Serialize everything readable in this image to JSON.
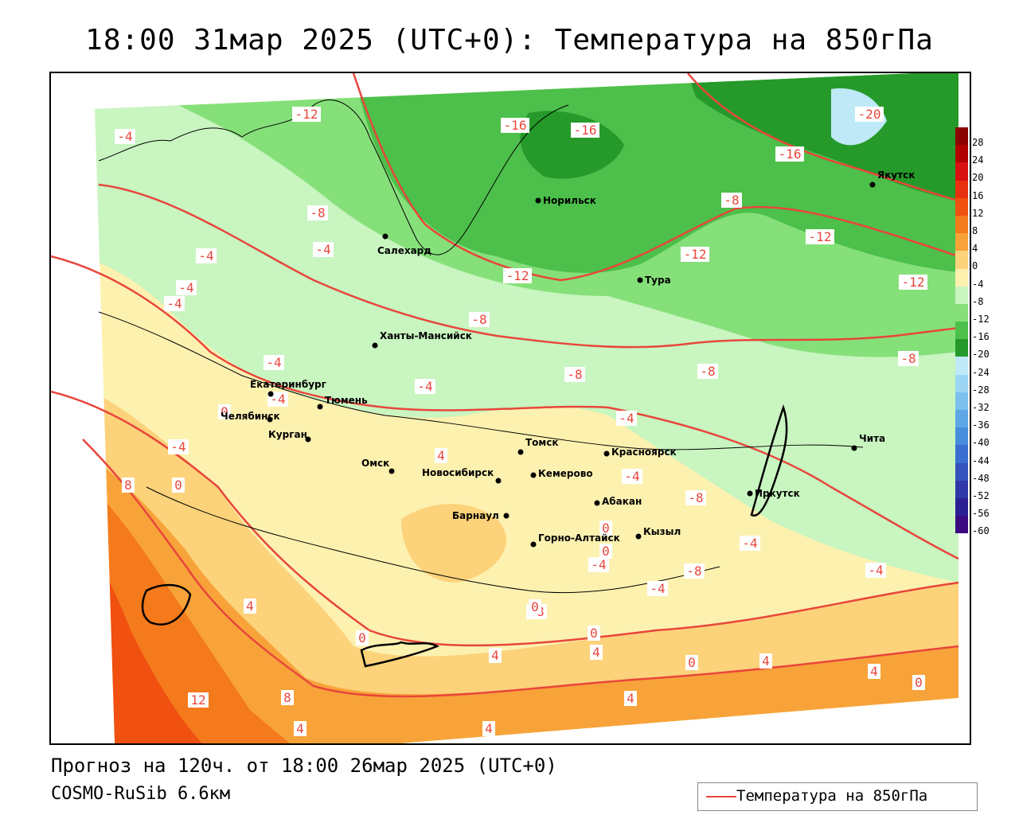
{
  "title": "18:00 31мар 2025 (UTC+0): Температура на 850гПа",
  "forecast_line": "Прогноз на 120ч. от 18:00 26мар 2025 (UTC+0)",
  "model_line": "COSMO-RuSib 6.6км",
  "legend": {
    "label": "Температура на 850гПа",
    "line_color": "#e8463c"
  },
  "colorbar": {
    "labels": [
      "28",
      "24",
      "20",
      "16",
      "12",
      "8",
      "4",
      "0",
      "-4",
      "-8",
      "-12",
      "-16",
      "-20",
      "-24",
      "-28",
      "-32",
      "-36",
      "-40",
      "-44",
      "-48",
      "-52",
      "-56",
      "-60"
    ],
    "colors": [
      "#8b0000",
      "#b00000",
      "#d81010",
      "#e83010",
      "#f05010",
      "#f47a1c",
      "#f8a33a",
      "#fcd27a",
      "#fdf1b0",
      "#c8f5c0",
      "#86e07a",
      "#4cc04a",
      "#259a2a",
      "#bfe9f7",
      "#9cd6f4",
      "#7cc0ee",
      "#5ea6e6",
      "#478ddc",
      "#3a6fd0",
      "#3552bd",
      "#3038a8",
      "#2a2094",
      "#3a0a80"
    ]
  },
  "isotherm_labels": [
    {
      "text": "-12"
    },
    {
      "text": "-16"
    },
    {
      "text": "-16"
    },
    {
      "text": "-20"
    },
    {
      "text": "-16"
    },
    {
      "text": "-4"
    },
    {
      "text": "-8"
    },
    {
      "text": "-8"
    },
    {
      "text": "-12"
    },
    {
      "text": "-4"
    },
    {
      "text": "-4"
    },
    {
      "text": "-4"
    },
    {
      "text": "-4"
    },
    {
      "text": "-12"
    },
    {
      "text": "-12"
    },
    {
      "text": "-12"
    },
    {
      "text": "-8"
    },
    {
      "text": "-4"
    },
    {
      "text": "-4"
    },
    {
      "text": "-4"
    },
    {
      "text": "-8"
    },
    {
      "text": "-8"
    },
    {
      "text": "-8"
    },
    {
      "text": "-4"
    },
    {
      "text": "0"
    },
    {
      "text": "-4"
    },
    {
      "text": "4"
    },
    {
      "text": "0"
    },
    {
      "text": "8"
    },
    {
      "text": "-4"
    },
    {
      "text": "0"
    },
    {
      "text": "-8"
    },
    {
      "text": "0"
    },
    {
      "text": "-4"
    },
    {
      "text": "-4"
    },
    {
      "text": "-8"
    },
    {
      "text": "-4"
    },
    {
      "text": "-4"
    },
    {
      "text": "-8"
    },
    {
      "text": "4"
    },
    {
      "text": "0"
    },
    {
      "text": "0"
    },
    {
      "text": "0"
    },
    {
      "text": "4"
    },
    {
      "text": "4"
    },
    {
      "text": "0"
    },
    {
      "text": "4"
    },
    {
      "text": "4"
    },
    {
      "text": "0"
    },
    {
      "text": "12"
    },
    {
      "text": "8"
    },
    {
      "text": "4"
    },
    {
      "text": "4"
    },
    {
      "text": "4"
    }
  ],
  "cities": [
    {
      "name": "Норильск"
    },
    {
      "name": "Якутск"
    },
    {
      "name": "Салехард"
    },
    {
      "name": "Тура"
    },
    {
      "name": "Ханты-Мансийск"
    },
    {
      "name": "Екатеринбург"
    },
    {
      "name": "Тюмень"
    },
    {
      "name": "Челябинск"
    },
    {
      "name": "Курган"
    },
    {
      "name": "Омск"
    },
    {
      "name": "Новосибирск"
    },
    {
      "name": "Томск"
    },
    {
      "name": "Кемерово"
    },
    {
      "name": "Красноярск"
    },
    {
      "name": "Абакан"
    },
    {
      "name": "Барнаул"
    },
    {
      "name": "Горно-Алтайск"
    },
    {
      "name": "Кызыл"
    },
    {
      "name": "Иркутск"
    },
    {
      "name": "Чита"
    }
  ]
}
